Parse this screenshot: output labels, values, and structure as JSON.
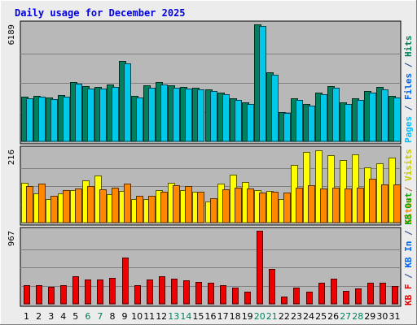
{
  "chart_data": {
    "type": "bar",
    "title": "Daily usage for December 2025",
    "days": [
      "1",
      "2",
      "3",
      "4",
      "5",
      "6",
      "7",
      "8",
      "9",
      "10",
      "11",
      "12",
      "13",
      "14",
      "15",
      "16",
      "17",
      "18",
      "19",
      "20",
      "21",
      "22",
      "23",
      "24",
      "25",
      "26",
      "27",
      "28",
      "29",
      "30",
      "31"
    ],
    "weekend_days": [
      "6",
      "7",
      "13",
      "14",
      "20",
      "21",
      "27",
      "28"
    ],
    "panels": [
      {
        "id": "hits-files-pages",
        "ymax_label": "6189",
        "ymax": 6189,
        "legend": [
          {
            "text": "Pages",
            "color": "#00c0ff"
          },
          {
            "text": " / ",
            "color": "#1e3c90"
          },
          {
            "text": "Files",
            "color": "#0066ee"
          },
          {
            "text": " / ",
            "color": "#1e3c90"
          },
          {
            "text": "Hits",
            "color": "#00805c"
          }
        ],
        "series": [
          {
            "name": "Hits",
            "color": "#00805c",
            "values": [
              2370,
              2425,
              2315,
              2430,
              3150,
              2910,
              2895,
              3000,
              4265,
              2425,
              2945,
              3120,
              2950,
              2890,
              2830,
              2760,
              2580,
              2280,
              2050,
              6189,
              3640,
              1550,
              2275,
              1970,
              2600,
              2940,
              2050,
              2275,
              2685,
              2860,
              2420
            ]
          },
          {
            "name": "Files",
            "color": "#00c8e8",
            "values": [
              2290,
              2350,
              2250,
              2355,
              3050,
              2795,
              2800,
              2890,
              4120,
              2330,
              2850,
              3030,
              2850,
              2805,
              2740,
              2675,
              2490,
              2190,
              1980,
              6120,
              3535,
              1490,
              2200,
              1880,
              2510,
              2850,
              1980,
              2200,
              2600,
              2760,
              2340
            ]
          }
        ]
      },
      {
        "id": "visits-sites",
        "ymax_label": "216",
        "ymax": 216,
        "legend": [
          {
            "text": "Sites",
            "color": "#ff8800"
          },
          {
            "text": " / ",
            "color": "#a06030"
          },
          {
            "text": "Visits",
            "color": "#c8c800"
          }
        ],
        "series": [
          {
            "name": "Visits",
            "color": "#ffff00",
            "values": [
              117,
              86,
              69,
              87,
              97,
              124,
              140,
              84,
              93,
              69,
              69,
              96,
              117,
              96,
              92,
              63,
              116,
              142,
              120,
              97,
              94,
              69,
              170,
              208,
              214,
              199,
              185,
              201,
              164,
              175,
              192
            ]
          },
          {
            "name": "Sites",
            "color": "#ff8800",
            "values": [
              108,
              115,
              80,
              96,
              101,
              107,
              98,
              103,
              115,
              80,
              80,
              92,
              110,
              108,
              91,
              73,
              99,
              103,
              101,
              89,
              92,
              89,
              103,
              110,
              102,
              103,
              102,
              104,
              130,
              114,
              112
            ]
          }
        ]
      },
      {
        "id": "kb",
        "ymax_label": "967",
        "ymax": 967,
        "legend": [
          {
            "text": "KB F",
            "color": "#e00000"
          },
          {
            "text": " / ",
            "color": "#1e3c90"
          },
          {
            "text": "KB In",
            "color": "#0066ee"
          },
          {
            "text": " / ",
            "color": "#1e3c90"
          },
          {
            "text": "KB Out",
            "color": "#00aa00"
          }
        ],
        "series": [
          {
            "name": "KB F",
            "color": "#ee0000",
            "values": [
              244,
              244,
              229,
              244,
              368,
              320,
              320,
              347,
              610,
              251,
              320,
              368,
              335,
              308,
              285,
              275,
              251,
              215,
              157,
              967,
              457,
              96,
              219,
              157,
              284,
              335,
              173,
              204,
              275,
              284,
              240
            ]
          }
        ]
      }
    ]
  }
}
